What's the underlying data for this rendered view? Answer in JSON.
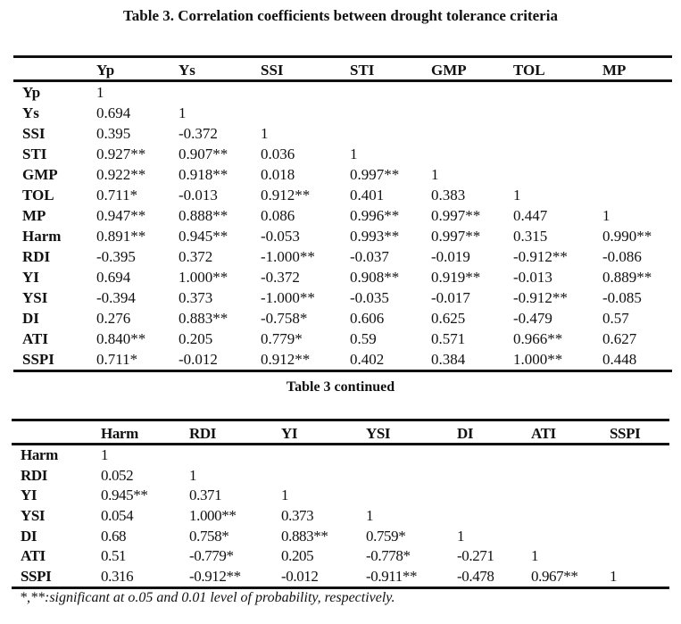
{
  "table1": {
    "title": "Table 3. Correlation coefficients between drought tolerance criteria",
    "columns": [
      "",
      "Yp",
      "Ys",
      "SSI",
      "STI",
      "GMP",
      "TOL",
      "MP"
    ],
    "rows": [
      [
        "Yp",
        "1",
        "",
        "",
        "",
        "",
        "",
        ""
      ],
      [
        "Ys",
        "0.694",
        "1",
        "",
        "",
        "",
        "",
        ""
      ],
      [
        "SSI",
        "0.395",
        "-0.372",
        "1",
        "",
        "",
        "",
        ""
      ],
      [
        "STI",
        "0.927**",
        "0.907**",
        "0.036",
        "1",
        "",
        "",
        ""
      ],
      [
        "GMP",
        "0.922**",
        "0.918**",
        "0.018",
        "0.997**",
        "1",
        "",
        ""
      ],
      [
        "TOL",
        "0.711*",
        "-0.013",
        "0.912**",
        "0.401",
        "0.383",
        "1",
        ""
      ],
      [
        "MP",
        "0.947**",
        "0.888**",
        "0.086",
        "0.996**",
        "0.997**",
        "0.447",
        "1"
      ],
      [
        "Harm",
        "0.891**",
        "0.945**",
        "-0.053",
        "0.993**",
        "0.997**",
        "0.315",
        "0.990**"
      ],
      [
        "RDI",
        "-0.395",
        "0.372",
        "-1.000**",
        "-0.037",
        "-0.019",
        "-0.912**",
        "-0.086"
      ],
      [
        "YI",
        "0.694",
        "1.000**",
        "-0.372",
        "0.908**",
        "0.919**",
        "-0.013",
        "0.889**"
      ],
      [
        "YSI",
        "-0.394",
        "0.373",
        "-1.000**",
        "-0.035",
        "-0.017",
        "-0.912**",
        "-0.085"
      ],
      [
        "DI",
        "0.276",
        "0.883**",
        "-0.758*",
        "0.606",
        "0.625",
        "-0.479",
        "0.57"
      ],
      [
        "ATI",
        "0.840**",
        "0.205",
        "0.779*",
        "0.59",
        "0.571",
        "0.966**",
        "0.627"
      ],
      [
        "SSPI",
        "0.711*",
        "-0.012",
        "0.912**",
        "0.402",
        "0.384",
        "1.000**",
        "0.448"
      ]
    ]
  },
  "table2": {
    "title": "Table 3 continued",
    "columns": [
      "",
      "Harm",
      "RDI",
      "YI",
      "YSI",
      "DI",
      "ATI",
      "SSPI"
    ],
    "rows": [
      [
        "Harm",
        "1",
        "",
        "",
        "",
        "",
        "",
        ""
      ],
      [
        "RDI",
        "0.052",
        "1",
        "",
        "",
        "",
        "",
        ""
      ],
      [
        "YI",
        "0.945**",
        "0.371",
        "1",
        "",
        "",
        "",
        ""
      ],
      [
        "YSI",
        "0.054",
        "1.000**",
        "0.373",
        "1",
        "",
        "",
        ""
      ],
      [
        "DI",
        "0.68",
        "0.758*",
        "0.883**",
        "0.759*",
        "1",
        "",
        ""
      ],
      [
        "ATI",
        "0.51",
        "-0.779*",
        "0.205",
        "-0.778*",
        "-0.271",
        "1",
        ""
      ],
      [
        "SSPI",
        "0.316",
        "-0.912**",
        "-0.012",
        "-0.911**",
        "-0.478",
        "0.967**",
        "1"
      ]
    ]
  },
  "footnote": "*,**:significant at o.05 and 0.01 level of probability, respectively."
}
